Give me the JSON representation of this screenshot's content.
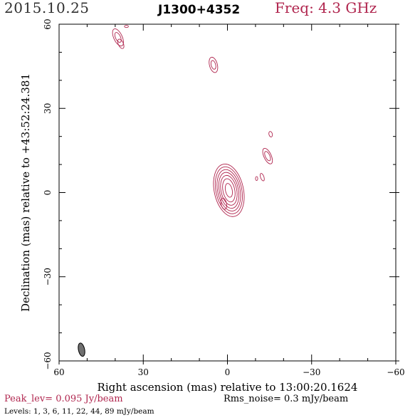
{
  "header": {
    "date": "2015.10.25",
    "source": "J1300+4352",
    "frequency": "Freq: 4.3 GHz"
  },
  "footer": {
    "peak": "Peak_lev=  0.095 Jy/beam",
    "rms": "Rms_noise=  0.3 mJy/beam",
    "levels": "Levels:  1,  3,  6,  11,  22,  44,  89 mJy/beam"
  },
  "colors": {
    "contour": "#b0254e",
    "date_text": "#303030",
    "beam_fill": "#707070",
    "axes": "#000000"
  },
  "chart_data": {
    "type": "contour",
    "xlabel": "Right ascension (mas) relative to 13:00:20.1624",
    "ylabel": "Declination (mas) relative to +43:52:24.381",
    "xlim": [
      60,
      -60
    ],
    "ylim": [
      -60,
      60
    ],
    "x_ticks": [
      60,
      30,
      0,
      -30,
      -60
    ],
    "y_ticks": [
      -60,
      -30,
      0,
      30,
      60
    ],
    "x_tick_labels": [
      "60",
      "30",
      "0",
      "−30",
      "−60"
    ],
    "y_tick_labels": [
      "−60",
      "−30",
      "0",
      "30",
      "60"
    ],
    "contour_levels_mJy": [
      1,
      3,
      6,
      11,
      22,
      44,
      89
    ],
    "peak_Jy_per_beam": 0.095,
    "rms_mJy_per_beam": 0.3,
    "components": [
      {
        "name": "core",
        "x": -0.5,
        "y": 0.8,
        "rx": [
          1.2,
          2.1,
          2.8,
          3.4,
          4.0,
          4.6,
          5.2
        ],
        "ry": [
          2.5,
          4.2,
          5.4,
          6.5,
          7.5,
          8.5,
          9.5
        ],
        "angle": -12
      },
      {
        "name": "core-tail",
        "x": 1.3,
        "y": -4.0,
        "rx": [
          1.0
        ],
        "ry": [
          2.0
        ],
        "angle": -12
      },
      {
        "name": "knot-west-1",
        "x": -14.3,
        "y": 13.0,
        "rx": [
          0.8,
          1.3
        ],
        "ry": [
          1.8,
          3.0
        ],
        "angle": -25
      },
      {
        "name": "knot-west-2",
        "x": -15.4,
        "y": 20.8,
        "rx": [
          0.6
        ],
        "ry": [
          1.0
        ],
        "angle": -15
      },
      {
        "name": "knot-west-3",
        "x": -12.4,
        "y": 5.5,
        "rx": [
          0.6
        ],
        "ry": [
          1.4
        ],
        "angle": -20
      },
      {
        "name": "knot-west-4",
        "x": -10.4,
        "y": 5.0,
        "rx": [
          0.4
        ],
        "ry": [
          0.7
        ],
        "angle": 0
      },
      {
        "name": "knot-northeast",
        "x": 5.0,
        "y": 45.5,
        "rx": [
          0.8,
          1.4
        ],
        "ry": [
          1.6,
          2.8
        ],
        "angle": -15
      },
      {
        "name": "knot-far-northeast",
        "x": 39.0,
        "y": 55.3,
        "rx": [
          0.9,
          1.5
        ],
        "ry": [
          1.9,
          3.3
        ],
        "angle": -25
      },
      {
        "name": "knot-far-northeast-b",
        "x": 38.0,
        "y": 53.0,
        "rx": [
          0.9
        ],
        "ry": [
          1.8
        ],
        "angle": -25
      },
      {
        "name": "knot-edge",
        "x": 36.0,
        "y": 59.2,
        "rx": [
          0.7
        ],
        "ry": [
          0.4
        ],
        "angle": 0
      }
    ],
    "beam": {
      "x": 52.0,
      "y": -56.0,
      "major_mas": 4.8,
      "minor_mas": 2.2,
      "angle": -12
    }
  }
}
